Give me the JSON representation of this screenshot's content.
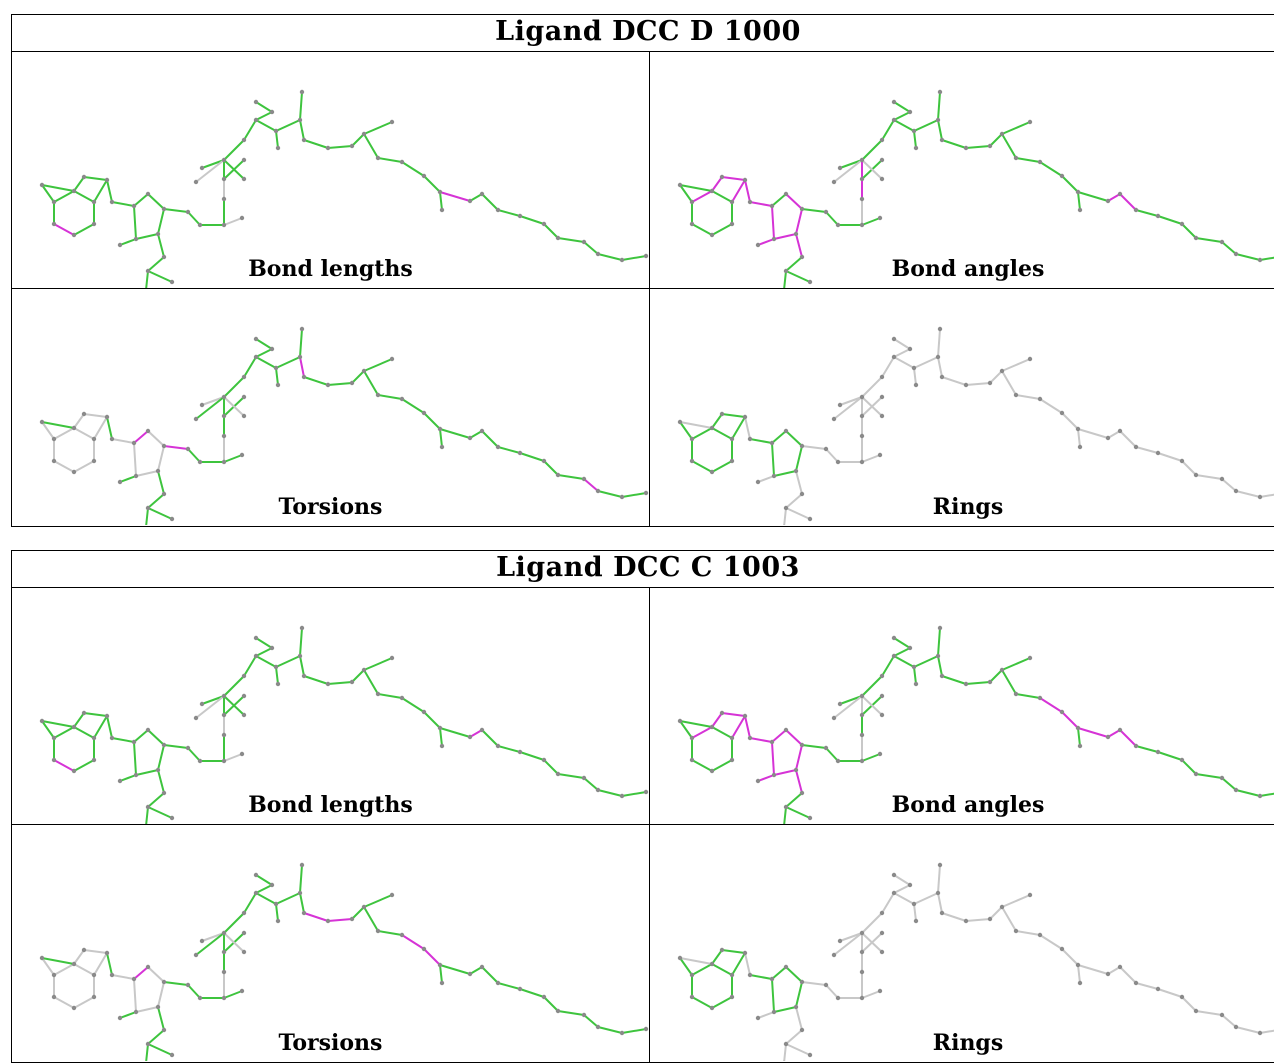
{
  "colors": {
    "flagged": "#d633d6",
    "ok": "#3ec43e",
    "neutral": "#c8c8c8",
    "atom": "#8a8a8a"
  },
  "panels": [
    {
      "title": "Ligand DCC D 1000",
      "cells": [
        {
          "caption": "Bond lengths",
          "scheme": "lengths",
          "flag": [
            2,
            48
          ]
        },
        {
          "caption": "Bond angles",
          "scheme": "angles",
          "flag": [
            6,
            7,
            8,
            9,
            10,
            11,
            13,
            14,
            15,
            16,
            17,
            18,
            28,
            29,
            49,
            50
          ]
        },
        {
          "caption": "Torsions",
          "scheme": "torsions",
          "flag": [
            12,
            22,
            24,
            40,
            55
          ]
        },
        {
          "caption": "Rings",
          "scheme": "rings",
          "flag": []
        }
      ]
    },
    {
      "title": "Ligand DCC C 1003",
      "cells": [
        {
          "caption": "Bond lengths",
          "scheme": "lengths",
          "flag": [
            2,
            49
          ]
        },
        {
          "caption": "Bond angles",
          "scheme": "angles",
          "flag": [
            6,
            7,
            8,
            9,
            10,
            11,
            12,
            13,
            14,
            15,
            16,
            17,
            18,
            46,
            47,
            48,
            49,
            50
          ]
        },
        {
          "caption": "Torsions",
          "scheme": "torsions",
          "flag": [
            12,
            24,
            41,
            42,
            46,
            47,
            64
          ]
        },
        {
          "caption": "Rings",
          "scheme": "rings",
          "flag": []
        }
      ]
    }
  ]
}
